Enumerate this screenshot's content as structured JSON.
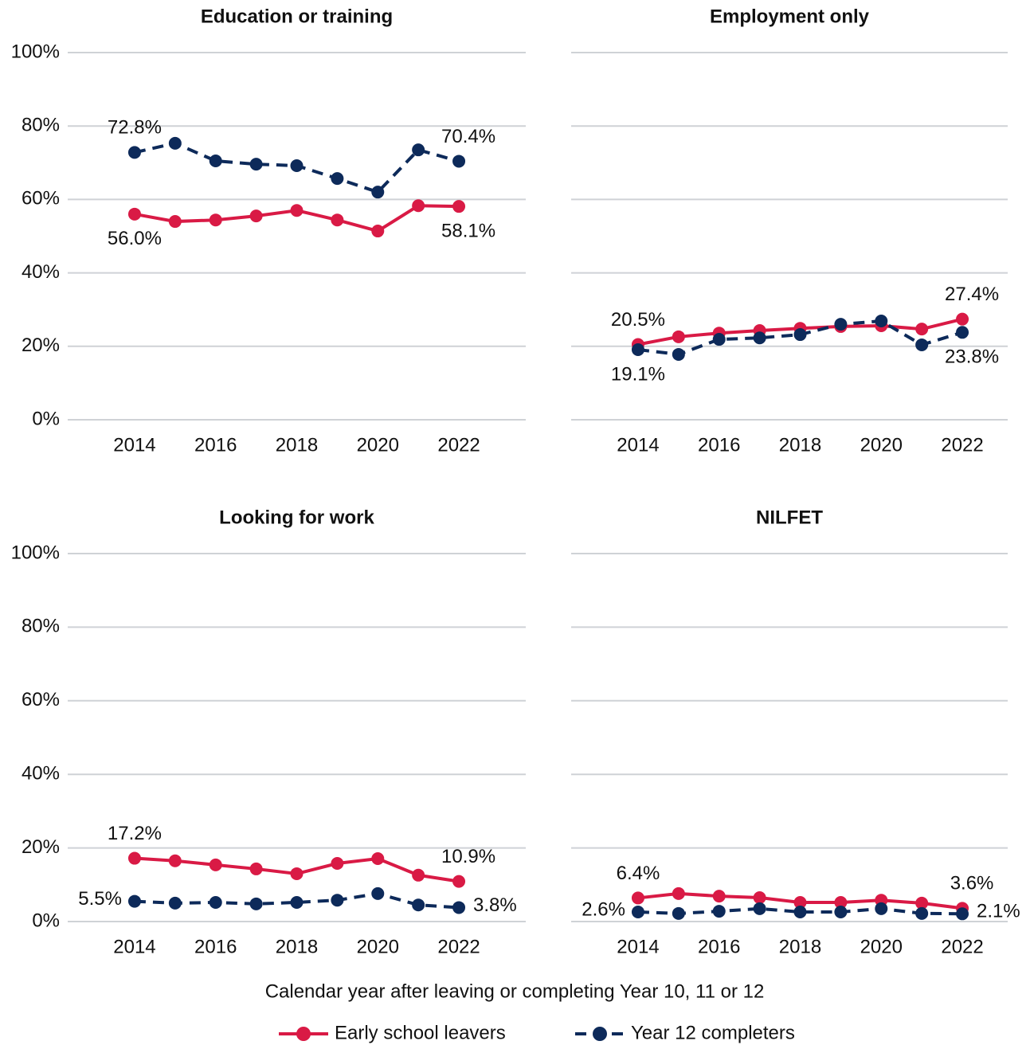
{
  "chart_data": [
    {
      "type": "line",
      "title": "Education or training",
      "x": [
        2014,
        2015,
        2016,
        2017,
        2018,
        2019,
        2020,
        2021,
        2022
      ],
      "xlim": [
        2012.35,
        2023.65
      ],
      "xticks": [
        2014,
        2016,
        2018,
        2020,
        2022
      ],
      "ylim": [
        0,
        100
      ],
      "yticks": [
        {
          "value": 0,
          "label": "0%"
        },
        {
          "value": 20,
          "label": "20%"
        },
        {
          "value": 40,
          "label": "40%"
        },
        {
          "value": 60,
          "label": "60%"
        },
        {
          "value": 80,
          "label": "80%"
        },
        {
          "value": 100,
          "label": "100%"
        }
      ],
      "grid": true,
      "series": [
        {
          "name": "Early school leavers",
          "color": "#d91a45",
          "linestyle": "solid",
          "values": [
            56.0,
            54.0,
            54.4,
            55.5,
            57.0,
            54.4,
            51.4,
            58.3,
            58.1
          ],
          "value_labels": [
            "56.0%",
            null,
            null,
            null,
            null,
            null,
            null,
            null,
            "58.1%"
          ]
        },
        {
          "name": "Year 12 completers",
          "color": "#0d2a5a",
          "linestyle": "dashed",
          "values": [
            72.8,
            75.3,
            70.5,
            69.6,
            69.2,
            65.7,
            62.0,
            73.5,
            70.4
          ],
          "value_labels": [
            "72.8%",
            null,
            null,
            null,
            null,
            null,
            null,
            null,
            "70.4%"
          ]
        }
      ]
    },
    {
      "type": "line",
      "title": "Employment only",
      "x": [
        2014,
        2015,
        2016,
        2017,
        2018,
        2019,
        2020,
        2021,
        2022
      ],
      "xlim": [
        2012.35,
        2023.65
      ],
      "xticks": [
        2014,
        2016,
        2018,
        2020,
        2022
      ],
      "ylim": [
        0,
        100
      ],
      "yticks": [
        0,
        20,
        40,
        60,
        80,
        100
      ],
      "grid": true,
      "series": [
        {
          "name": "Early school leavers",
          "color": "#d91a45",
          "linestyle": "solid",
          "values": [
            20.5,
            22.6,
            23.6,
            24.3,
            24.9,
            25.4,
            25.6,
            24.7,
            27.4
          ],
          "value_labels": [
            "20.5%",
            null,
            null,
            null,
            null,
            null,
            null,
            null,
            "27.4%"
          ]
        },
        {
          "name": "Year 12 completers",
          "color": "#0d2a5a",
          "linestyle": "dashed",
          "values": [
            19.1,
            17.8,
            21.9,
            22.3,
            23.2,
            26.0,
            26.9,
            20.4,
            23.8
          ],
          "value_labels": [
            "19.1%",
            null,
            null,
            null,
            null,
            null,
            null,
            null,
            "23.8%"
          ]
        }
      ]
    },
    {
      "type": "line",
      "title": "Looking for work",
      "x": [
        2014,
        2015,
        2016,
        2017,
        2018,
        2019,
        2020,
        2021,
        2022
      ],
      "xlim": [
        2012.35,
        2023.65
      ],
      "xticks": [
        2014,
        2016,
        2018,
        2020,
        2022
      ],
      "ylim": [
        0,
        100
      ],
      "yticks": [
        {
          "value": 0,
          "label": "0%"
        },
        {
          "value": 20,
          "label": "20%"
        },
        {
          "value": 40,
          "label": "40%"
        },
        {
          "value": 60,
          "label": "60%"
        },
        {
          "value": 80,
          "label": "80%"
        },
        {
          "value": 100,
          "label": "100%"
        }
      ],
      "grid": true,
      "series": [
        {
          "name": "Early school leavers",
          "color": "#d91a45",
          "linestyle": "solid",
          "values": [
            17.2,
            16.5,
            15.4,
            14.3,
            13.0,
            15.8,
            17.1,
            12.6,
            10.9
          ],
          "value_labels": [
            "17.2%",
            null,
            null,
            null,
            null,
            null,
            null,
            null,
            "10.9%"
          ]
        },
        {
          "name": "Year 12 completers",
          "color": "#0d2a5a",
          "linestyle": "dashed",
          "values": [
            5.5,
            5.0,
            5.2,
            4.8,
            5.2,
            5.8,
            7.6,
            4.5,
            3.8
          ],
          "value_labels": [
            "5.5%",
            null,
            null,
            null,
            null,
            null,
            null,
            null,
            "3.8%"
          ]
        }
      ]
    },
    {
      "type": "line",
      "title": "NILFET",
      "x": [
        2014,
        2015,
        2016,
        2017,
        2018,
        2019,
        2020,
        2021,
        2022
      ],
      "xlim": [
        2012.35,
        2023.65
      ],
      "xticks": [
        2014,
        2016,
        2018,
        2020,
        2022
      ],
      "ylim": [
        0,
        100
      ],
      "yticks": [
        0,
        20,
        40,
        60,
        80,
        100
      ],
      "grid": true,
      "series": [
        {
          "name": "Early school leavers",
          "color": "#d91a45",
          "linestyle": "solid",
          "values": [
            6.4,
            7.6,
            6.9,
            6.5,
            5.2,
            5.2,
            5.8,
            5.0,
            3.6
          ],
          "value_labels": [
            "6.4%",
            null,
            null,
            null,
            null,
            null,
            null,
            null,
            "3.6%"
          ]
        },
        {
          "name": "Year 12 completers",
          "color": "#0d2a5a",
          "linestyle": "dashed",
          "values": [
            2.6,
            2.2,
            2.8,
            3.5,
            2.6,
            2.6,
            3.5,
            2.2,
            2.1
          ],
          "value_labels": [
            "2.6%",
            null,
            null,
            null,
            null,
            null,
            null,
            null,
            "2.1%"
          ]
        }
      ]
    }
  ],
  "x_label": "Calendar year after leaving or completing Year 10, 11 or 12",
  "legend": "bottom"
}
